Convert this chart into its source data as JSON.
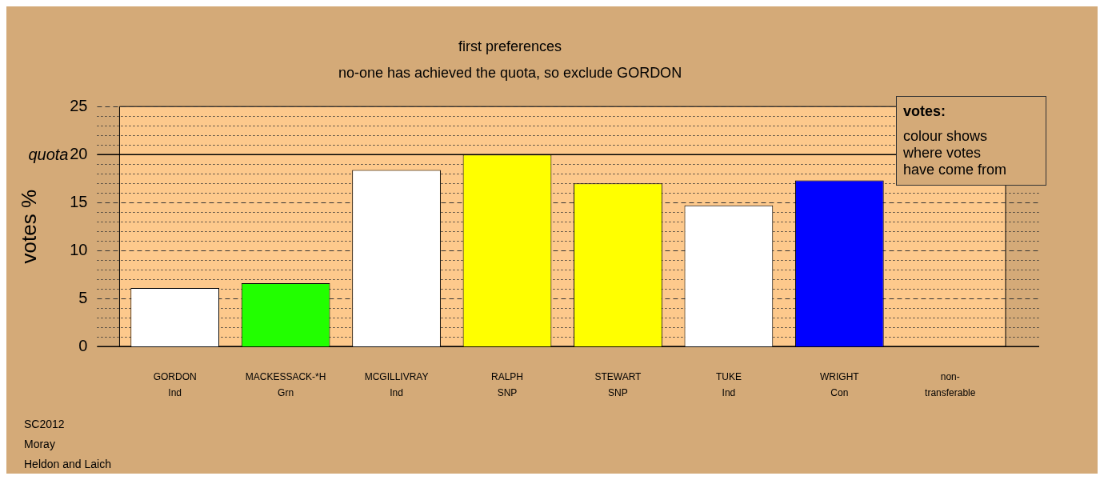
{
  "chart_data": {
    "type": "bar",
    "title": "first preferences",
    "subtitle": "no-one has achieved the quota, so exclude GORDON",
    "ylabel": "votes %",
    "categories": [
      "GORDON\nInd",
      "MACKESSACK-*H\nGrn",
      "MCGILLIVRAY\nInd",
      "RALPH\nSNP",
      "STEWART\nSNP",
      "TUKE\nInd",
      "WRIGHT\nCon",
      "non-\ntransferable"
    ],
    "values": [
      6.1,
      6.6,
      18.4,
      20.0,
      17.0,
      14.7,
      17.3,
      0
    ],
    "colors": [
      "#ffffff",
      "#22ff00",
      "#ffffff",
      "#ffff00",
      "#ffff00",
      "#ffffff",
      "#0000ff",
      "#ffffff"
    ],
    "ylim": [
      0,
      25
    ],
    "yticks": [
      0,
      {
        "value": 1,
        "label": null
      },
      {
        "value": 2,
        "label": null
      },
      {
        "value": 3,
        "label": null
      },
      {
        "value": 4,
        "label": null
      },
      5,
      {
        "value": 6,
        "label": null
      },
      {
        "value": 7,
        "label": null
      },
      {
        "value": 8,
        "label": null
      },
      {
        "value": 9,
        "label": null
      },
      10,
      {
        "value": 11,
        "label": null
      },
      {
        "value": 12,
        "label": null
      },
      {
        "value": 13,
        "label": null
      },
      {
        "value": 14,
        "label": null
      },
      15,
      {
        "value": 16,
        "label": null
      },
      {
        "value": 17,
        "label": null
      },
      {
        "value": 18,
        "label": null
      },
      {
        "value": 19,
        "label": null
      },
      20,
      {
        "value": 21,
        "label": null
      },
      {
        "value": 22,
        "label": null
      },
      {
        "value": 23,
        "label": null
      },
      {
        "value": 24,
        "label": null
      },
      25
    ],
    "grid": "y",
    "legend": false,
    "ref_lines": [
      {
        "axis": "y",
        "value": 20,
        "label": "quota",
        "color": "#000000",
        "line_style": "solid"
      }
    ],
    "annotations": [
      "votes:",
      "colour shows where votes have come from",
      "SC2012",
      "Moray",
      "Heldon and Laich"
    ]
  }
}
